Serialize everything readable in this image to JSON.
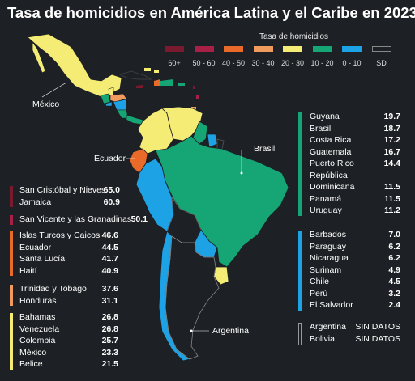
{
  "title": "Tasa de homicidios en América Latina y el Caribe en 2023",
  "legend": {
    "title": "Tasa de homicidios",
    "items": [
      {
        "label": "60+",
        "color": "#7a1a2e"
      },
      {
        "label": "50 - 60",
        "color": "#a82045"
      },
      {
        "label": "40 - 50",
        "color": "#ea6a2a"
      },
      {
        "label": "30 - 40",
        "color": "#f19a5e"
      },
      {
        "label": "20 - 30",
        "color": "#f4ec74"
      },
      {
        "label": "10 - 20",
        "color": "#16a575"
      },
      {
        "label": "0 - 10",
        "color": "#1ea2e6"
      },
      {
        "label": "SD",
        "color": "#1d2024"
      }
    ]
  },
  "map_labels": {
    "mexico": "México",
    "ecuador": "Ecuador",
    "brasil": "Brasil",
    "argentina": "Argentina"
  },
  "left_groups": [
    {
      "color": "#7a1a2e",
      "rows": [
        {
          "name": "San Cristóbal y Nieves",
          "value": "65.0"
        },
        {
          "name": "Jamaica",
          "value": "60.9"
        }
      ]
    },
    {
      "color": "#a82045",
      "rows": [
        {
          "name": "San Vicente y las Granadinas",
          "value": "50.1"
        }
      ]
    },
    {
      "color": "#ea6a2a",
      "rows": [
        {
          "name": "Islas Turcos y Caicos",
          "value": "46.6"
        },
        {
          "name": "Ecuador",
          "value": "44.5"
        },
        {
          "name": "Santa Lucía",
          "value": "41.7"
        },
        {
          "name": "Haití",
          "value": "40.9"
        }
      ]
    },
    {
      "color": "#f19a5e",
      "rows": [
        {
          "name": "Trinidad y Tobago",
          "value": "37.6"
        },
        {
          "name": "Honduras",
          "value": "31.1"
        }
      ]
    },
    {
      "color": "#f4ec74",
      "rows": [
        {
          "name": "Bahamas",
          "value": "26.8"
        },
        {
          "name": "Venezuela",
          "value": "26.8"
        },
        {
          "name": "Colombia",
          "value": "25.7"
        },
        {
          "name": "México",
          "value": "23.3"
        },
        {
          "name": "Belice",
          "value": "21.5"
        }
      ]
    }
  ],
  "right_groups": [
    {
      "color": "#16a575",
      "rows": [
        {
          "name": "Guyana",
          "value": "19.7"
        },
        {
          "name": "Brasil",
          "value": "18.7"
        },
        {
          "name": "Costa Rica",
          "value": "17.2"
        },
        {
          "name": "Guatemala",
          "value": "16.7"
        },
        {
          "name": "Puerto Rico",
          "value": "14.4"
        },
        {
          "name": "República",
          "value": ""
        },
        {
          "name": "Dominicana",
          "value": "11.5"
        },
        {
          "name": "Panamá",
          "value": "11.5"
        },
        {
          "name": "Uruguay",
          "value": "11.2"
        }
      ]
    },
    {
      "color": "#1ea2e6",
      "rows": [
        {
          "name": "Barbados",
          "value": "7.0"
        },
        {
          "name": "Paraguay",
          "value": "6.2"
        },
        {
          "name": "Nicaragua",
          "value": "6.2"
        },
        {
          "name": "Surinam",
          "value": "4.9"
        },
        {
          "name": "Chile",
          "value": "4.5"
        },
        {
          "name": "Perú",
          "value": "3.2"
        },
        {
          "name": "El Salvador",
          "value": "2.4"
        }
      ]
    },
    {
      "color": "#1d2024",
      "rows": [
        {
          "name": "Argentina",
          "value": "SIN DATOS"
        },
        {
          "name": "Bolivia",
          "value": "SIN DATOS"
        }
      ]
    }
  ]
}
